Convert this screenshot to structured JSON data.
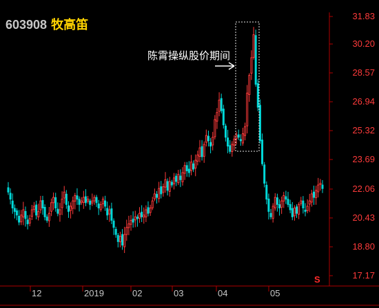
{
  "stock": {
    "code": "603908",
    "name": "牧高笛"
  },
  "annotation": {
    "text": "陈霄操纵股价期间"
  },
  "marker": "S",
  "colors": {
    "up": "#ff3b3b",
    "down": "#00d8d8",
    "axis": "#b00000",
    "grid": "#600000"
  },
  "chart_data": {
    "type": "candlestick",
    "y_ticks": [
      "31.83",
      "30.20",
      "28.57",
      "26.94",
      "25.32",
      "23.69",
      "22.06",
      "20.43",
      "18.80",
      "17.17"
    ],
    "x_ticks": [
      "12",
      "2019",
      "02",
      "03",
      "04",
      "05"
    ],
    "ylim": [
      17.17,
      31.83
    ],
    "closes": [
      21.9,
      21.5,
      21.0,
      20.8,
      20.6,
      20.2,
      20.6,
      20.9,
      20.4,
      20.1,
      20.4,
      20.9,
      21.1,
      20.6,
      20.8,
      21.4,
      21.0,
      20.5,
      20.3,
      20.7,
      21.3,
      21.6,
      21.0,
      20.7,
      20.9,
      21.5,
      21.9,
      21.2,
      20.8,
      21.1,
      21.4,
      21.7,
      21.5,
      21.2,
      21.4,
      21.6,
      21.3,
      21.5,
      21.2,
      21.4,
      21.6,
      21.3,
      21.0,
      21.2,
      21.5,
      21.1,
      20.6,
      20.9,
      20.3,
      19.9,
      19.5,
      19.1,
      19.4,
      18.9,
      19.5,
      19.9,
      20.1,
      20.3,
      20.2,
      20.5,
      20.4,
      20.7,
      20.5,
      20.6,
      20.9,
      20.7,
      21.0,
      21.4,
      21.8,
      21.6,
      22.1,
      21.8,
      22.2,
      22.6,
      22.0,
      22.5,
      22.3,
      22.7,
      22.5,
      22.9,
      22.6,
      23.0,
      23.4,
      23.1,
      23.0,
      23.6,
      23.2,
      23.7,
      24.0,
      24.4,
      23.9,
      24.6,
      25.1,
      24.8,
      24.5,
      25.0,
      26.0,
      26.4,
      27.1,
      26.5,
      25.7,
      25.0,
      24.5,
      24.2,
      24.6,
      24.9,
      25.1,
      25.0,
      24.8,
      25.2,
      25.6,
      27.5,
      28.5,
      29.5,
      30.8,
      28.0,
      26.7,
      24.8,
      23.5,
      22.4,
      21.5,
      20.8,
      20.5,
      21.1,
      21.6,
      21.2,
      21.0,
      21.4,
      21.7,
      21.5,
      21.2,
      20.9,
      20.5,
      21.0,
      20.7,
      21.2,
      21.4,
      21.0,
      20.8,
      21.1,
      21.4,
      21.8,
      21.6,
      22.0,
      22.3,
      22.4,
      22.1
    ]
  }
}
